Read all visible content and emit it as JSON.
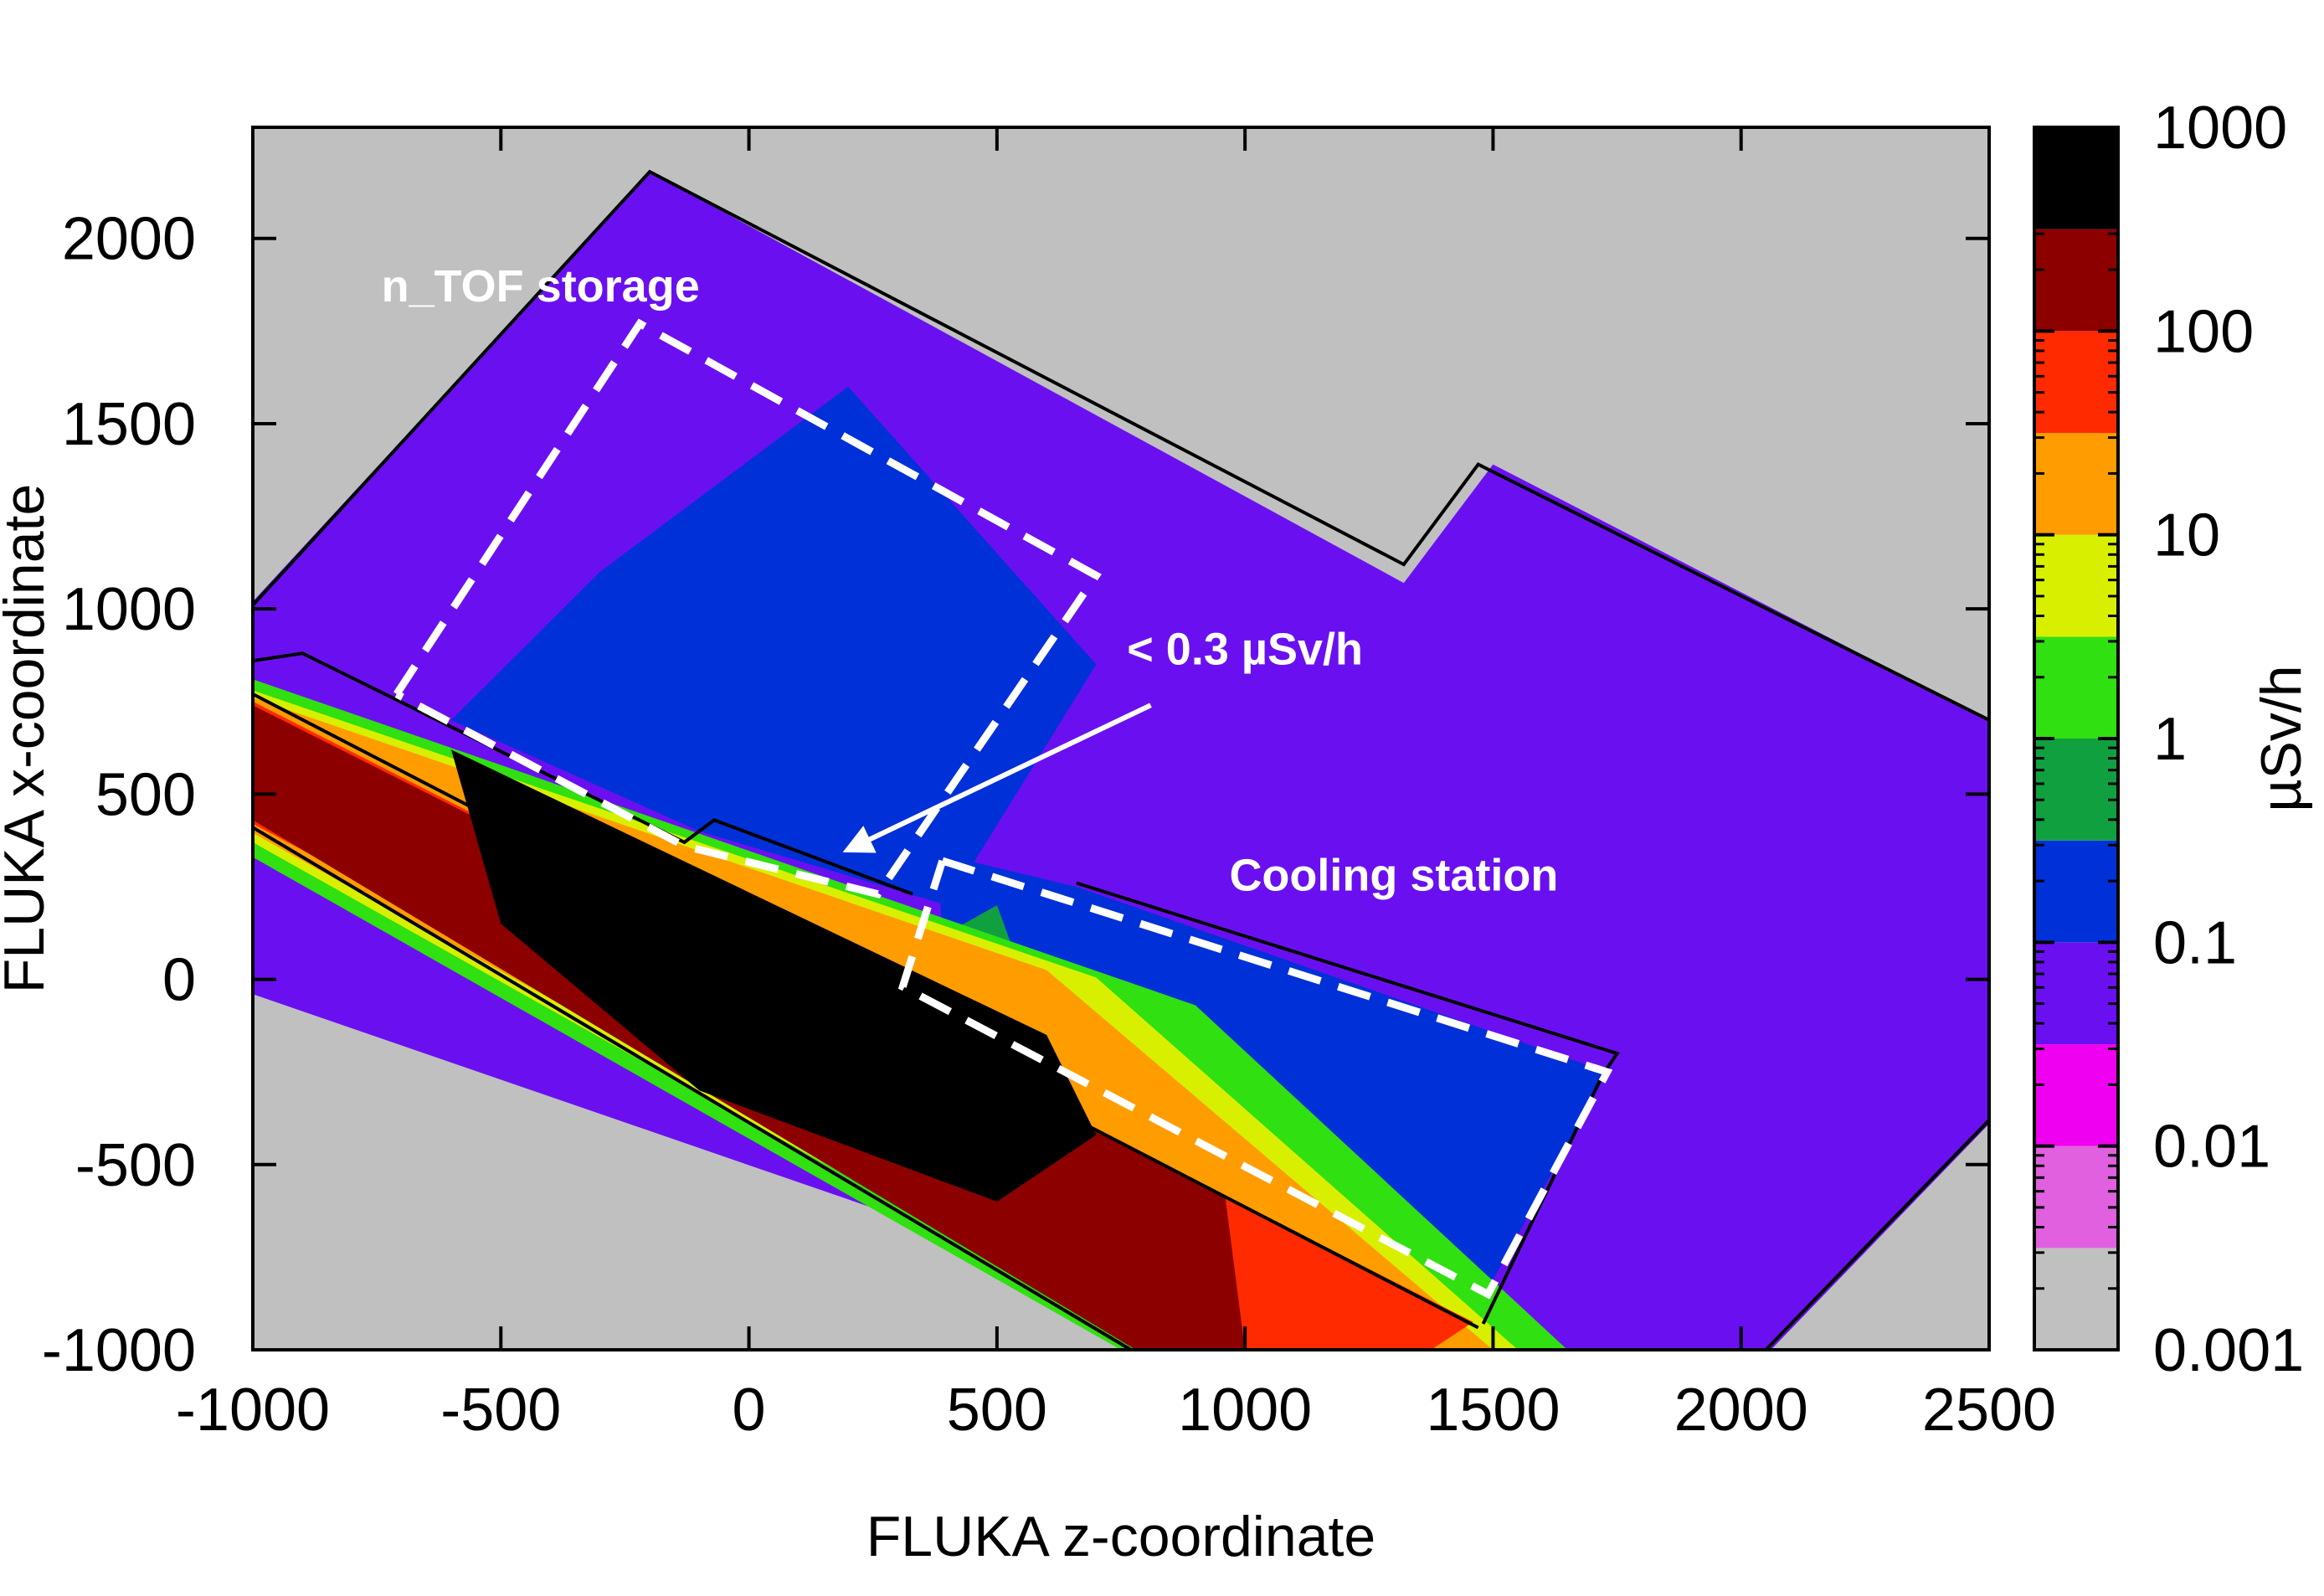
{
  "chart_data": {
    "type": "heatmap",
    "title": "",
    "xlabel": "FLUKA z-coordinate",
    "ylabel": "FLUKA x-coordinate",
    "xlim": [
      -1000,
      2500
    ],
    "ylim": [
      -1000,
      2300
    ],
    "x_ticks": [
      -1000,
      -500,
      0,
      500,
      1000,
      1500,
      2000,
      2500
    ],
    "y_ticks": [
      -1000,
      -500,
      0,
      500,
      1000,
      1500,
      2000
    ],
    "x_tick_labels": [
      "-1000",
      "-500",
      "0",
      "500",
      "1000",
      "1500",
      "2000",
      "2500"
    ],
    "y_tick_labels": [
      "-1000",
      "-500",
      "0",
      "500",
      "1000",
      "1500",
      "2000"
    ],
    "colorbar": {
      "label": "µSv/h",
      "scale": "log",
      "range": [
        0.001,
        1000
      ],
      "major_ticks": [
        0.001,
        0.01,
        0.1,
        1,
        10,
        100,
        1000
      ],
      "major_tick_labels": [
        "0.001",
        "0.01",
        "0.1",
        "1",
        "10",
        "100",
        "1000"
      ],
      "bands": [
        {
          "from": 0.001,
          "to": 0.00316,
          "color": "#c0c0c0"
        },
        {
          "from": 0.00316,
          "to": 0.01,
          "color": "#e060e0"
        },
        {
          "from": 0.01,
          "to": 0.0316,
          "color": "#f000f0"
        },
        {
          "from": 0.0316,
          "to": 0.1,
          "color": "#6a10f0"
        },
        {
          "from": 0.1,
          "to": 0.316,
          "color": "#0030d8"
        },
        {
          "from": 0.316,
          "to": 1,
          "color": "#10a040"
        },
        {
          "from": 1,
          "to": 3.16,
          "color": "#30e010"
        },
        {
          "from": 3.16,
          "to": 10,
          "color": "#d8f000"
        },
        {
          "from": 10,
          "to": 31.6,
          "color": "#ff9c00"
        },
        {
          "from": 31.6,
          "to": 100,
          "color": "#ff2a00"
        },
        {
          "from": 100,
          "to": 316,
          "color": "#8c0000"
        },
        {
          "from": 316,
          "to": 1000,
          "color": "#000000"
        }
      ]
    },
    "regions": [
      {
        "name": "hall-violet-field",
        "level": 0.05,
        "polygon": [
          [
            -1000,
            1020
          ],
          [
            -200,
            2180
          ],
          [
            1320,
            1070
          ],
          [
            1500,
            1390
          ],
          [
            2500,
            700
          ],
          [
            2500,
            -390
          ],
          [
            2060,
            -1000
          ],
          [
            1080,
            -1000
          ],
          [
            -1000,
            -40
          ]
        ]
      },
      {
        "name": "hall-blue-field",
        "level": 0.2,
        "polygon": [
          [
            -300,
            1100
          ],
          [
            200,
            1600
          ],
          [
            700,
            850
          ],
          [
            400,
            200
          ],
          [
            -100,
            400
          ],
          [
            -600,
            700
          ]
        ]
      },
      {
        "name": "cooling-blue-field",
        "level": 0.2,
        "polygon": [
          [
            380,
            340
          ],
          [
            660,
            250
          ],
          [
            1730,
            -250
          ],
          [
            1480,
            -860
          ],
          [
            1000,
            -560
          ],
          [
            400,
            -100
          ]
        ]
      },
      {
        "name": "cooling-green-field",
        "level": 0.6,
        "polygon": [
          [
            300,
            50
          ],
          [
            500,
            200
          ],
          [
            560,
            -20
          ],
          [
            380,
            -100
          ]
        ]
      },
      {
        "name": "beam-green-band",
        "level": 2,
        "polygon": [
          [
            -1000,
            810
          ],
          [
            900,
            -70
          ],
          [
            1650,
            -1000
          ],
          [
            750,
            -1000
          ],
          [
            -1000,
            330
          ]
        ]
      },
      {
        "name": "beam-yellow-band",
        "level": 5,
        "polygon": [
          [
            -1000,
            780
          ],
          [
            700,
            5
          ],
          [
            1550,
            -1000
          ],
          [
            820,
            -1000
          ],
          [
            -1000,
            370
          ]
        ]
      },
      {
        "name": "beam-orange-band",
        "level": 20,
        "polygon": [
          [
            -1000,
            760
          ],
          [
            600,
            25
          ],
          [
            1500,
            -1000
          ],
          [
            870,
            -1000
          ],
          [
            -1000,
            395
          ]
        ]
      },
      {
        "name": "beam-red-band",
        "level": 60,
        "polygon": [
          [
            -1000,
            750
          ],
          [
            1460,
            -925
          ],
          [
            1375,
            -1000
          ],
          [
            1000,
            -1000
          ],
          [
            -1000,
            420
          ]
        ]
      },
      {
        "name": "beam-darkred-band",
        "level": 200,
        "polygon": [
          [
            -1000,
            740
          ],
          [
            960,
            -585
          ],
          [
            1000,
            -1000
          ],
          [
            780,
            -1000
          ],
          [
            -1000,
            430
          ]
        ]
      },
      {
        "name": "beam-black-core",
        "level": 600,
        "polygon": [
          [
            -600,
            620
          ],
          [
            600,
            -150
          ],
          [
            700,
            -420
          ],
          [
            500,
            -600
          ],
          [
            -100,
            -300
          ],
          [
            -500,
            150
          ]
        ]
      }
    ],
    "structures": [
      {
        "name": "hall-outline",
        "points": [
          [
            -1000,
            1010
          ],
          [
            -200,
            2180
          ],
          [
            1320,
            1120
          ],
          [
            1470,
            1390
          ],
          [
            2500,
            700
          ]
        ]
      },
      {
        "name": "beam-tunnel-upper-wall",
        "points": [
          [
            -1000,
            860
          ],
          [
            -900,
            880
          ],
          [
            -130,
            370
          ],
          [
            -70,
            430
          ],
          [
            330,
            230
          ]
        ]
      },
      {
        "name": "beam-tunnel-inner-upper",
        "points": [
          [
            -1000,
            770
          ],
          [
            1470,
            -940
          ]
        ]
      },
      {
        "name": "beam-tunnel-inner-lower",
        "points": [
          [
            -1000,
            410
          ],
          [
            770,
            -1000
          ]
        ]
      },
      {
        "name": "cooling-outline",
        "points": [
          [
            660,
            260
          ],
          [
            1750,
            -200
          ],
          [
            1720,
            -260
          ],
          [
            1480,
            -930
          ]
        ]
      },
      {
        "name": "right-lower-outline",
        "points": [
          [
            2500,
            -380
          ],
          [
            2050,
            -1000
          ]
        ]
      }
    ],
    "dashed_boxes": [
      {
        "name": "ntof-storage-box",
        "points": [
          [
            -710,
            770
          ],
          [
            -220,
            1770
          ],
          [
            700,
            1090
          ],
          [
            260,
            230
          ],
          [
            -130,
            360
          ],
          [
            -710,
            770
          ]
        ]
      },
      {
        "name": "cooling-station-box",
        "points": [
          [
            390,
            320
          ],
          [
            1730,
            -250
          ],
          [
            1490,
            -850
          ],
          [
            310,
            -20
          ],
          [
            390,
            320
          ]
        ]
      }
    ],
    "annotations": [
      {
        "name": "ntof-storage-label",
        "text": "n_TOF storage",
        "x": -420,
        "y": 1830
      },
      {
        "name": "cooling-station-label",
        "text": "Cooling station",
        "x": 1300,
        "y": 240
      },
      {
        "name": "dose-rate-label",
        "text": "< 0.3 µSv/h",
        "x": 1000,
        "y": 850,
        "arrow_from": [
          810,
          740
        ],
        "arrow_to": [
          200,
          350
        ]
      }
    ]
  }
}
